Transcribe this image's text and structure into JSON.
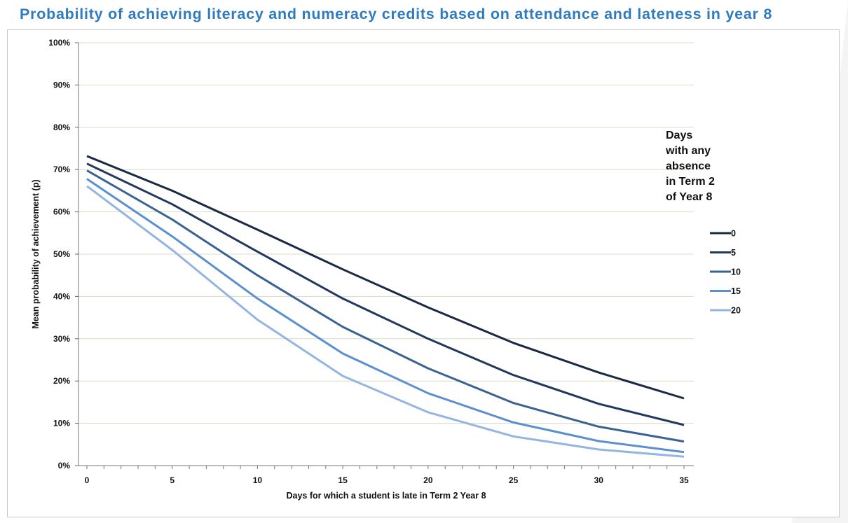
{
  "title": "Probability of achieving literacy and numeracy credits based on attendance and lateness in year 8",
  "chart_data": {
    "type": "line",
    "xlabel": "Days for which a student is late in Term 2 Year 8",
    "ylabel": "Mean probability of achievement (p)",
    "x_ticks": [
      "0",
      "5",
      "10",
      "15",
      "20",
      "25",
      "30",
      "35"
    ],
    "y_ticks": [
      "0%",
      "10%",
      "20%",
      "30%",
      "40%",
      "50%",
      "60%",
      "70%",
      "80%",
      "90%",
      "100%"
    ],
    "xlim": [
      0,
      35
    ],
    "ylim": [
      0,
      100
    ],
    "grid": true,
    "legend_title_lines": [
      "Days",
      "with any",
      "absence",
      "in Term 2",
      "of Year 8"
    ],
    "legend_position": "right",
    "x": [
      0,
      5,
      10,
      15,
      20,
      25,
      30,
      35
    ],
    "series": [
      {
        "name": "0",
        "color": "#1a2a44",
        "values": [
          73.2,
          65.0,
          55.8,
          46.4,
          37.4,
          29.0,
          22.0,
          15.9
        ]
      },
      {
        "name": "5",
        "color": "#22385e",
        "values": [
          71.4,
          61.8,
          50.6,
          39.5,
          30.0,
          21.4,
          14.6,
          9.6
        ]
      },
      {
        "name": "10",
        "color": "#3a6391",
        "values": [
          69.8,
          58.2,
          45.0,
          32.8,
          23.0,
          14.8,
          9.2,
          5.7
        ]
      },
      {
        "name": "15",
        "color": "#5b8fd0",
        "values": [
          67.8,
          54.2,
          39.5,
          26.5,
          17.1,
          10.2,
          5.8,
          3.2
        ]
      },
      {
        "name": "20",
        "color": "#93b5e0",
        "values": [
          66.1,
          51.0,
          34.5,
          21.2,
          12.6,
          6.9,
          3.8,
          2.1
        ]
      }
    ]
  }
}
